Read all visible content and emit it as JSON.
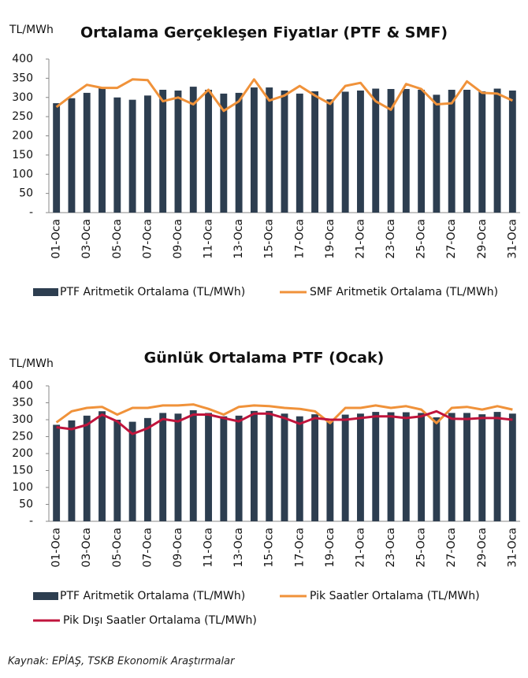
{
  "chart_data": [
    {
      "type": "bar",
      "title": "Ortalama Gerçekleşen Fiyatlar (PTF & SMF)",
      "y_label": "TL/MWh",
      "categories": [
        "01-Oca",
        null,
        "03-Oca",
        null,
        "05-Oca",
        null,
        "07-Oca",
        null,
        "09-Oca",
        null,
        "11-Oca",
        null,
        "13-Oca",
        null,
        "15-Oca",
        null,
        "17-Oca",
        null,
        "19-Oca",
        null,
        "21-Oca",
        null,
        "23-Oca",
        null,
        "25-Oca",
        null,
        "27-Oca",
        null,
        "29-Oca",
        null,
        "31-Oca"
      ],
      "series": [
        {
          "name": "PTF Aritmetik Ortalama (TL/MWh)",
          "type": "bar",
          "color": "#2d3e50",
          "values": [
            285,
            298,
            312,
            325,
            300,
            294,
            305,
            320,
            318,
            328,
            320,
            310,
            312,
            326,
            326,
            318,
            310,
            316,
            295,
            315,
            318,
            323,
            322,
            322,
            320,
            307,
            320,
            320,
            316,
            323,
            318
          ]
        },
        {
          "name": "SMF Aritmetik Ortalama (TL/MWh)",
          "type": "line",
          "color": "#f0923a",
          "values": [
            275,
            305,
            333,
            325,
            325,
            347,
            345,
            290,
            300,
            282,
            320,
            265,
            290,
            347,
            292,
            305,
            330,
            305,
            283,
            330,
            338,
            290,
            268,
            335,
            322,
            282,
            285,
            342,
            312,
            310,
            292
          ]
        }
      ],
      "ylim": [
        0,
        400
      ],
      "yticks": [
        {
          "value": 0,
          "label": "-"
        },
        50,
        100,
        150,
        200,
        250,
        300,
        350,
        400
      ],
      "grid": false
    },
    {
      "type": "bar",
      "title": "Günlük Ortalama PTF (Ocak)",
      "y_label": "TL/MWh",
      "categories": [
        "01-Oca",
        null,
        "03-Oca",
        null,
        "05-Oca",
        null,
        "07-Oca",
        null,
        "09-Oca",
        null,
        "11-Oca",
        null,
        "13-Oca",
        null,
        "15-Oca",
        null,
        "17-Oca",
        null,
        "19-Oca",
        null,
        "21-Oca",
        null,
        "23-Oca",
        null,
        "25-Oca",
        null,
        "27-Oca",
        null,
        "29-Oca",
        null,
        "31-Oca"
      ],
      "series": [
        {
          "name": "PTF Aritmetik Ortalama (TL/MWh)",
          "type": "bar",
          "color": "#2d3e50",
          "values": [
            285,
            298,
            312,
            325,
            300,
            294,
            305,
            320,
            318,
            328,
            320,
            310,
            312,
            326,
            326,
            318,
            310,
            316,
            295,
            315,
            318,
            323,
            322,
            322,
            320,
            307,
            320,
            320,
            316,
            323,
            318
          ]
        },
        {
          "name": "Pik Saatler Ortalama (TL/MWh)",
          "type": "line",
          "color": "#f0923a",
          "values": [
            292,
            325,
            335,
            338,
            315,
            335,
            335,
            342,
            342,
            345,
            332,
            315,
            338,
            342,
            340,
            335,
            332,
            325,
            290,
            335,
            335,
            342,
            335,
            340,
            330,
            290,
            335,
            338,
            330,
            340,
            330
          ]
        },
        {
          "name": "Pik Dışı Saatler Ortalama (TL/MWh)",
          "type": "line",
          "color": "#c0143c",
          "values": [
            278,
            272,
            285,
            315,
            295,
            258,
            275,
            302,
            295,
            315,
            315,
            305,
            295,
            318,
            318,
            305,
            288,
            305,
            300,
            300,
            305,
            310,
            310,
            305,
            310,
            325,
            303,
            302,
            305,
            305,
            300
          ]
        }
      ],
      "ylim": [
        0,
        400
      ],
      "yticks": [
        {
          "value": 0,
          "label": "-"
        },
        50,
        100,
        150,
        200,
        250,
        300,
        350,
        400
      ],
      "grid": false
    }
  ],
  "source": "Kaynak: EPİAŞ, TSKB Ekonomik Araştırmalar"
}
